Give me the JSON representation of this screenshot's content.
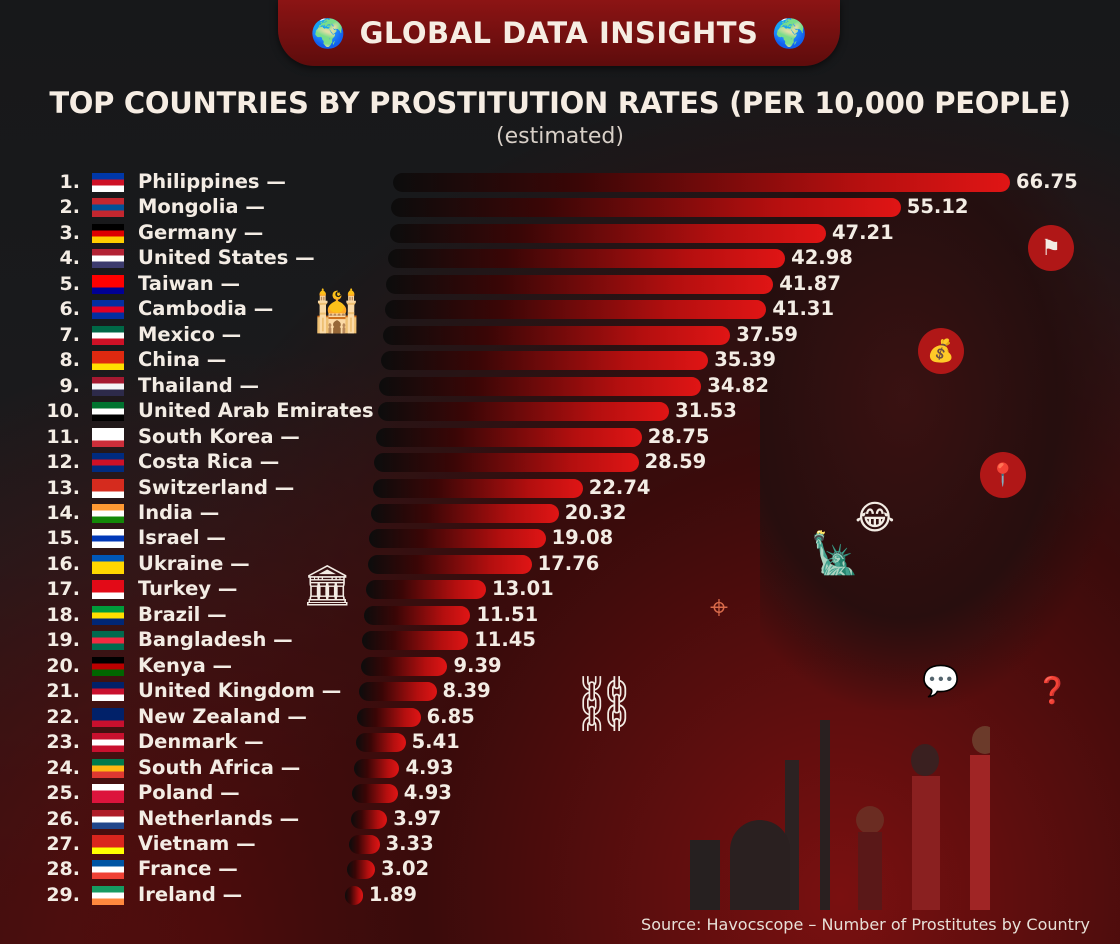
{
  "banner": {
    "title": "GLOBAL DATA INSIGHTS",
    "icon": "globe-icon"
  },
  "chart_data": {
    "type": "bar",
    "orientation": "horizontal",
    "title": "TOP COUNTRIES BY PROSTITUTION RATES (PER 10,000 PEOPLE)",
    "subtitle": "(estimated)",
    "categories": [
      "Philippines",
      "Mongolia",
      "Germany",
      "United States",
      "Taiwan",
      "Cambodia",
      "Mexico",
      "China",
      "Thailand",
      "United Arab Emirates",
      "South Korea",
      "Costa Rica",
      "Switzerland",
      "India",
      "Israel",
      "Ukraine",
      "Turkey",
      "Brazil",
      "Bangladesh",
      "Kenya",
      "United Kingdom",
      "New Zealand",
      "Denmark",
      "South Africa",
      "Poland",
      "Netherlands",
      "Vietnam",
      "France",
      "Ireland"
    ],
    "ranks": [
      "1.",
      "2.",
      "3.",
      "4.",
      "5.",
      "6.",
      "7.",
      "8.",
      "9.",
      "10.",
      "11.",
      "12.",
      "13.",
      "14.",
      "15.",
      "16.",
      "17.",
      "18.",
      "19.",
      "20.",
      "21.",
      "22.",
      "23.",
      "24.",
      "25.",
      "26.",
      "27.",
      "28.",
      "29."
    ],
    "values": [
      66.75,
      55.12,
      47.21,
      42.98,
      41.87,
      41.31,
      37.59,
      35.39,
      34.82,
      31.53,
      28.75,
      28.59,
      22.74,
      20.32,
      19.08,
      17.76,
      13.01,
      11.51,
      11.45,
      9.39,
      8.39,
      6.85,
      5.41,
      4.93,
      4.93,
      3.97,
      3.33,
      3.02,
      1.89
    ],
    "value_labels": [
      "66.75",
      "55.12",
      "47.21",
      "42.98",
      "41.87",
      "41.31",
      "37.59",
      "35.39",
      "34.82",
      "31.53",
      "28.75",
      "28.59",
      "22.74",
      "20.32",
      "19.08",
      "17.76",
      "13.01",
      "11.51",
      "11.45",
      "9.39",
      "8.39",
      "6.85",
      "5.41",
      "4.93",
      "4.93",
      "3.97",
      "3.33",
      "3.02",
      "1.89"
    ],
    "label_suffix": " —",
    "bar_color": "#e01515",
    "grid": false,
    "legend": "none"
  },
  "flags": [
    [
      "#0038a8",
      "#ce1126",
      "#ffffff"
    ],
    [
      "#c4272f",
      "#015197",
      "#c4272f"
    ],
    [
      "#000000",
      "#dd0000",
      "#ffce00"
    ],
    [
      "#b22234",
      "#ffffff",
      "#3c3b6e"
    ],
    [
      "#fe0000",
      "#fe0000",
      "#000095"
    ],
    [
      "#032ea1",
      "#e00025",
      "#032ea1"
    ],
    [
      "#006847",
      "#ffffff",
      "#ce1126"
    ],
    [
      "#de2910",
      "#de2910",
      "#ffde00"
    ],
    [
      "#a51931",
      "#f4f5f8",
      "#2d2a4a"
    ],
    [
      "#00732f",
      "#ffffff",
      "#000000"
    ],
    [
      "#ffffff",
      "#ffffff",
      "#cd2e3a"
    ],
    [
      "#002b7f",
      "#ce1126",
      "#002b7f"
    ],
    [
      "#d52b1e",
      "#d52b1e",
      "#ffffff"
    ],
    [
      "#ff9933",
      "#ffffff",
      "#138808"
    ],
    [
      "#ffffff",
      "#0038b8",
      "#ffffff"
    ],
    [
      "#0057b7",
      "#ffd700",
      "#ffd700"
    ],
    [
      "#e30a17",
      "#e30a17",
      "#ffffff"
    ],
    [
      "#009c3b",
      "#ffdf00",
      "#002776"
    ],
    [
      "#006a4e",
      "#f42a41",
      "#006a4e"
    ],
    [
      "#000000",
      "#bb0000",
      "#006600"
    ],
    [
      "#012169",
      "#c8102e",
      "#ffffff"
    ],
    [
      "#012169",
      "#012169",
      "#c8102e"
    ],
    [
      "#c8102e",
      "#ffffff",
      "#c8102e"
    ],
    [
      "#007a4d",
      "#ffb612",
      "#de3831"
    ],
    [
      "#ffffff",
      "#dc143c",
      "#dc143c"
    ],
    [
      "#ae1c28",
      "#ffffff",
      "#21468b"
    ],
    [
      "#da251d",
      "#da251d",
      "#ffff00"
    ],
    [
      "#0055a4",
      "#ffffff",
      "#ef4135"
    ],
    [
      "#169b62",
      "#ffffff",
      "#ff883e"
    ]
  ],
  "source": "Source: Havocscope – Number of Prostitutes by Country"
}
